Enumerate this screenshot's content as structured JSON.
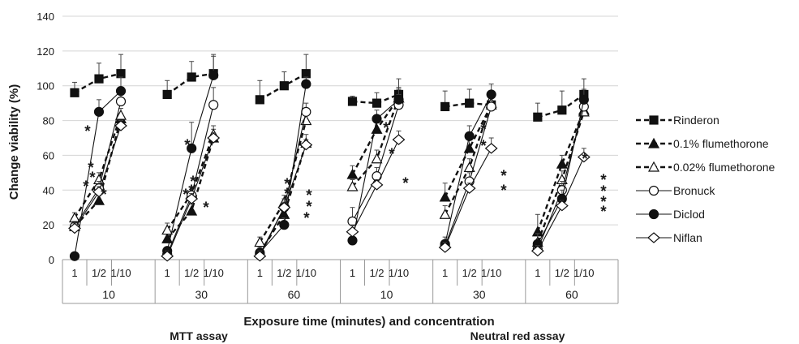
{
  "chart_data": {
    "type": "line",
    "ylabel": "Change viability (%)",
    "xlabel": "Exposure time (minutes) and concentration",
    "ylim": [
      0,
      140
    ],
    "yticks": [
      0,
      20,
      40,
      60,
      80,
      100,
      120,
      140
    ],
    "concentrations": [
      "1",
      "1/2",
      "1/10"
    ],
    "groups": [
      {
        "time": "10",
        "assay": "MTT assay"
      },
      {
        "time": "30",
        "assay": "MTT assay"
      },
      {
        "time": "60",
        "assay": "MTT assay"
      },
      {
        "time": "10",
        "assay": "Neutral red assay"
      },
      {
        "time": "30",
        "assay": "Neutral red assay"
      },
      {
        "time": "60",
        "assay": "Neutral red assay"
      }
    ],
    "assay_labels": [
      "MTT assay",
      "Neutral red assay"
    ],
    "legend_position": "right",
    "grid": "horizontal",
    "significance_mark": "*",
    "series": [
      {
        "name": "Rinderon",
        "marker": "square-filled",
        "line": "dashed",
        "values": [
          [
            96,
            104,
            107
          ],
          [
            95,
            105,
            107
          ],
          [
            92,
            100,
            107
          ],
          [
            91,
            90,
            95
          ],
          [
            88,
            90,
            89
          ],
          [
            82,
            86,
            95
          ]
        ],
        "errors": [
          [
            6,
            9,
            11
          ],
          [
            8,
            9,
            11
          ],
          [
            11,
            8,
            11
          ],
          [
            3,
            6,
            9
          ],
          [
            9,
            8,
            7
          ],
          [
            8,
            11,
            9
          ]
        ]
      },
      {
        "name": "0.1% flumethorone",
        "marker": "triangle-filled",
        "line": "dashed",
        "values": [
          [
            19,
            34,
            81
          ],
          [
            12,
            28,
            70
          ],
          [
            4,
            26,
            67
          ],
          [
            49,
            75,
            93
          ],
          [
            36,
            64,
            89
          ],
          [
            16,
            55,
            86
          ]
        ],
        "errors": [
          [
            3,
            3,
            3
          ],
          [
            4,
            4,
            5
          ],
          [
            3,
            5,
            5
          ],
          [
            5,
            5,
            6
          ],
          [
            8,
            5,
            7
          ],
          [
            10,
            5,
            6
          ]
        ]
      },
      {
        "name": "0.02% flumethorone",
        "marker": "triangle-open",
        "line": "dashed",
        "values": [
          [
            24,
            46,
            83
          ],
          [
            17,
            38,
            72
          ],
          [
            10,
            33,
            80
          ],
          [
            42,
            58,
            93
          ],
          [
            26,
            53,
            90
          ],
          [
            10,
            46,
            85
          ]
        ],
        "errors": [
          [
            3,
            4,
            4
          ],
          [
            4,
            4,
            5
          ],
          [
            3,
            4,
            5
          ],
          [
            4,
            5,
            6
          ],
          [
            5,
            5,
            7
          ],
          [
            5,
            5,
            6
          ]
        ]
      },
      {
        "name": "Bronuck",
        "marker": "circle-open",
        "line": "solid",
        "values": [
          [
            19,
            41,
            91
          ],
          [
            3,
            37,
            89
          ],
          [
            3,
            30,
            85
          ],
          [
            22,
            48,
            89
          ],
          [
            8,
            45,
            88
          ],
          [
            6,
            40,
            88
          ]
        ],
        "errors": [
          [
            3,
            4,
            5
          ],
          [
            3,
            5,
            10
          ],
          [
            3,
            5,
            5
          ],
          [
            8,
            5,
            6
          ],
          [
            5,
            5,
            6
          ],
          [
            3,
            5,
            6
          ]
        ]
      },
      {
        "name": "Diclod",
        "marker": "circle-filled",
        "line": "solid",
        "values": [
          [
            2,
            85,
            97
          ],
          [
            5,
            64,
            106
          ],
          [
            4,
            20,
            101
          ],
          [
            11,
            81,
            92
          ],
          [
            9,
            71,
            95
          ],
          [
            9,
            35,
            92
          ]
        ],
        "errors": [
          [
            0,
            7,
            8
          ],
          [
            0,
            15,
            11
          ],
          [
            0,
            4,
            4
          ],
          [
            0,
            5,
            6
          ],
          [
            0,
            6,
            6
          ],
          [
            0,
            5,
            6
          ]
        ]
      },
      {
        "name": "Niflan",
        "marker": "diamond-open",
        "line": "solid",
        "values": [
          [
            18,
            39,
            77
          ],
          [
            2,
            35,
            70
          ],
          [
            2,
            30,
            66
          ],
          [
            16,
            43,
            69
          ],
          [
            7,
            41,
            64
          ],
          [
            5,
            31,
            59
          ]
        ],
        "errors": [
          [
            3,
            3,
            3
          ],
          [
            3,
            3,
            3
          ],
          [
            3,
            3,
            3
          ],
          [
            4,
            3,
            5
          ],
          [
            3,
            3,
            6
          ],
          [
            3,
            3,
            5
          ]
        ]
      }
    ]
  }
}
